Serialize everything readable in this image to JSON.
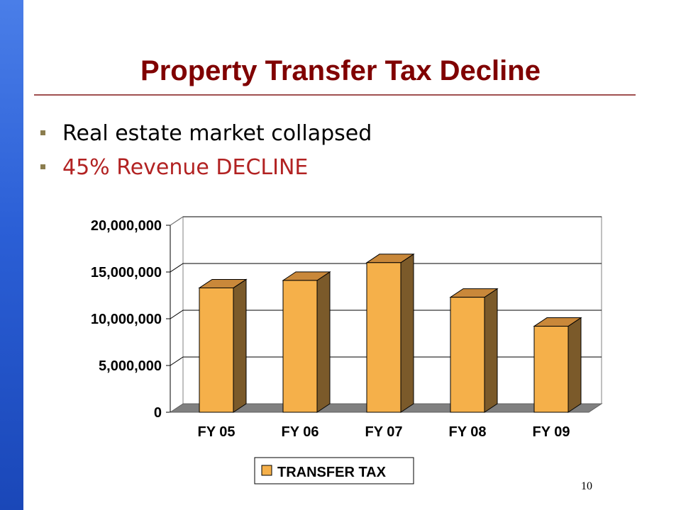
{
  "slide": {
    "title": "Property Transfer Tax Decline",
    "bullets": [
      {
        "text": "Real estate market collapsed",
        "color": "#000000"
      },
      {
        "text": "45% Revenue DECLINE",
        "color": "#b22222"
      }
    ],
    "bullet_color": "#8b7d4e",
    "page_number": "10"
  },
  "chart_data": {
    "type": "bar",
    "style": "3d-column",
    "categories": [
      "FY 05",
      "FY 06",
      "FY 07",
      "FY 08",
      "FY 09"
    ],
    "series": [
      {
        "name": "TRANSFER TAX",
        "values": [
          13300000,
          14100000,
          16000000,
          12300000,
          9200000
        ],
        "color": "#f5b04a"
      }
    ],
    "y_ticks": [
      "0",
      "5,000,000",
      "10,000,000",
      "15,000,000",
      "20,000,000"
    ],
    "ylim": [
      0,
      20000000
    ],
    "grid": true,
    "legend": "bottom"
  }
}
